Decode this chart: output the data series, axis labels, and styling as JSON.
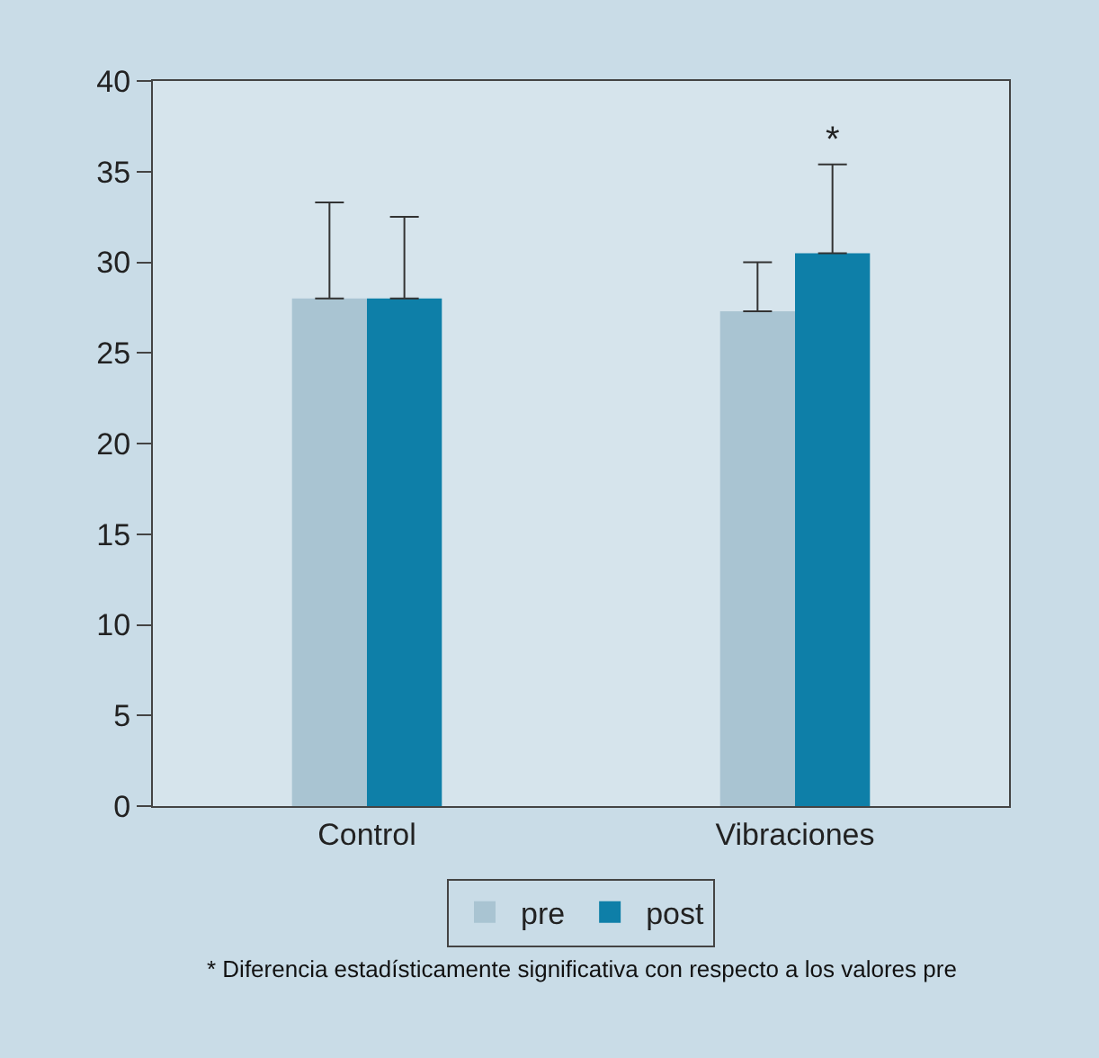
{
  "chart_data": {
    "type": "bar",
    "categories": [
      "Control",
      "Vibraciones"
    ],
    "series": [
      {
        "name": "pre",
        "color": "#a9c4d2",
        "values": [
          28,
          27.3
        ],
        "errors": [
          [
            28,
            33.3
          ],
          [
            27.3,
            30
          ]
        ]
      },
      {
        "name": "post",
        "color": "#0e7fa8",
        "values": [
          28,
          30.5
        ],
        "errors": [
          [
            28,
            32.5
          ],
          [
            30.5,
            35.4
          ]
        ]
      }
    ],
    "ylim": [
      0,
      40
    ],
    "yticks": [
      0,
      5,
      10,
      15,
      20,
      25,
      30,
      35,
      40
    ],
    "grid": false,
    "legend": "bottom",
    "annotations": [
      "*",
      "* Diferencia estadísticamente significativa con respecto a los valores pre"
    ]
  }
}
